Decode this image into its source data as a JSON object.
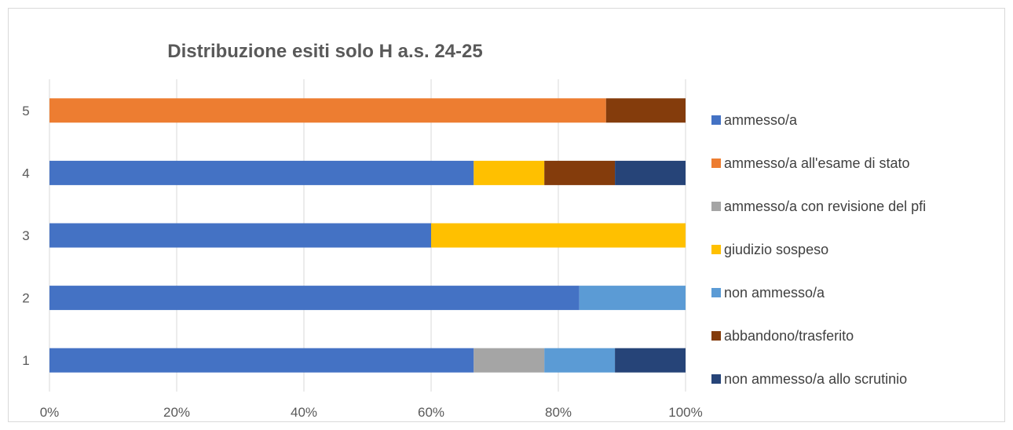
{
  "chart_data": {
    "type": "bar",
    "orientation": "horizontal",
    "stacking": "percent",
    "title": "Distribuzione esiti solo H a.s. 24-25",
    "xlabel": "",
    "ylabel": "",
    "categories": [
      "1",
      "2",
      "3",
      "4",
      "5"
    ],
    "x_ticks": [
      "0%",
      "20%",
      "40%",
      "60%",
      "80%",
      "100%"
    ],
    "xlim": [
      0,
      100
    ],
    "grid": "vertical",
    "legend_position": "right",
    "series": [
      {
        "name": "ammesso/a",
        "color": "#4472C4",
        "values": [
          66.7,
          83.3,
          60.0,
          66.7,
          0
        ]
      },
      {
        "name": "ammesso/a all'esame di stato",
        "color": "#ED7D31",
        "values": [
          0,
          0,
          0,
          0,
          87.5
        ]
      },
      {
        "name": "ammesso/a con revisione del pfi",
        "color": "#A5A5A5",
        "values": [
          11.1,
          0,
          0,
          0,
          0
        ]
      },
      {
        "name": "giudizio sospeso",
        "color": "#FFC000",
        "values": [
          0,
          0,
          40.0,
          11.1,
          0
        ]
      },
      {
        "name": "non ammesso/a",
        "color": "#5B9BD5",
        "values": [
          11.1,
          16.7,
          0,
          0,
          0
        ]
      },
      {
        "name": "abbandono/trasferito",
        "color": "#843C0C",
        "values": [
          0,
          0,
          0,
          11.1,
          12.5
        ]
      },
      {
        "name": "non ammesso/a allo scrutinio",
        "color": "#264478",
        "values": [
          11.1,
          0,
          0,
          11.1,
          0
        ]
      }
    ]
  }
}
